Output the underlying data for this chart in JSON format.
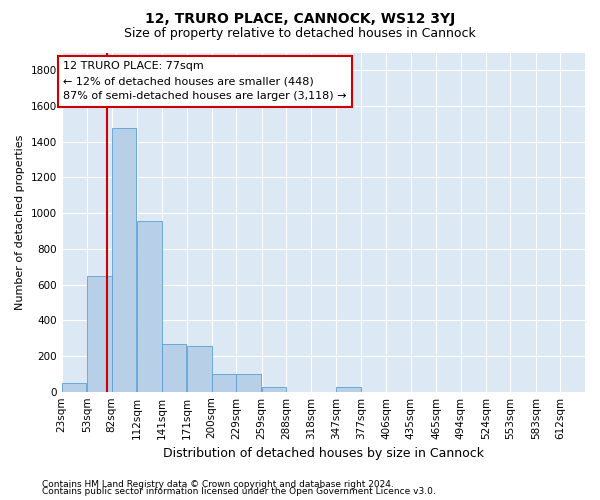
{
  "title": "12, TRURO PLACE, CANNOCK, WS12 3YJ",
  "subtitle": "Size of property relative to detached houses in Cannock",
  "xlabel": "Distribution of detached houses by size in Cannock",
  "ylabel": "Number of detached properties",
  "bin_lefts": [
    23,
    53,
    82,
    112,
    141,
    171,
    200,
    229,
    259,
    288,
    318,
    347,
    377,
    406,
    435,
    465,
    494,
    524,
    553,
    583
  ],
  "bin_labels": [
    "23sqm",
    "53sqm",
    "82sqm",
    "112sqm",
    "141sqm",
    "171sqm",
    "200sqm",
    "229sqm",
    "259sqm",
    "288sqm",
    "318sqm",
    "347sqm",
    "377sqm",
    "406sqm",
    "435sqm",
    "465sqm",
    "494sqm",
    "524sqm",
    "553sqm",
    "583sqm",
    "612sqm"
  ],
  "values": [
    48,
    648,
    1478,
    955,
    265,
    255,
    100,
    100,
    28,
    0,
    0,
    28,
    0,
    0,
    0,
    0,
    0,
    0,
    0,
    0
  ],
  "bar_color": "#b8cfe8",
  "bar_edge_color": "#5a9fd4",
  "property_sqm": 77,
  "property_line_color": "#cc0000",
  "annotation_line1": "12 TRURO PLACE: 77sqm",
  "annotation_line2": "← 12% of detached houses are smaller (448)",
  "annotation_line3": "87% of semi-detached houses are larger (3,118) →",
  "annotation_box_color": "#ffffff",
  "annotation_box_edge": "#cc0000",
  "ylim": [
    0,
    1900
  ],
  "yticks": [
    0,
    200,
    400,
    600,
    800,
    1000,
    1200,
    1400,
    1600,
    1800
  ],
  "background_color": "#dde8f5",
  "grid_color": "#ffffff",
  "footer_line1": "Contains HM Land Registry data © Crown copyright and database right 2024.",
  "footer_line2": "Contains public sector information licensed under the Open Government Licence v3.0.",
  "title_fontsize": 10,
  "subtitle_fontsize": 9,
  "annotation_fontsize": 8,
  "ylabel_fontsize": 8,
  "xlabel_fontsize": 9,
  "tick_fontsize": 7.5,
  "footer_fontsize": 6.5
}
